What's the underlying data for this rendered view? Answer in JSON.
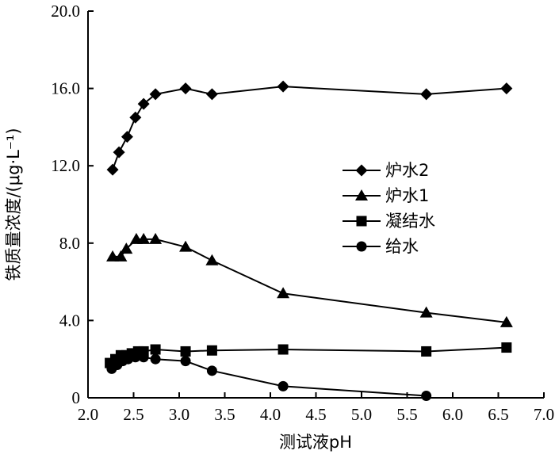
{
  "chart_data": {
    "type": "line",
    "title": "",
    "xlabel": "测试液pH",
    "ylabel": "铁质量浓度/(μg·L⁻¹)",
    "xlim": [
      2.0,
      7.0
    ],
    "ylim": [
      0,
      20.0
    ],
    "x_ticks": [
      "2.0",
      "2.5",
      "3.0",
      "3.5",
      "4.0",
      "4.5",
      "5.0",
      "5.5",
      "6.0",
      "6.5",
      "7.0"
    ],
    "y_ticks": [
      "0",
      "4.0",
      "8.0",
      "12.0",
      "16.0",
      "20.0"
    ],
    "legend_position": "right-center",
    "grid": false,
    "series": [
      {
        "name": "炉水2",
        "marker": "diamond",
        "x": [
          2.27,
          2.34,
          2.43,
          2.52,
          2.61,
          2.74,
          3.07,
          3.36,
          4.14,
          5.71,
          6.59
        ],
        "y": [
          11.8,
          12.7,
          13.5,
          14.5,
          15.2,
          15.7,
          16.0,
          15.7,
          16.1,
          15.7,
          16.0
        ]
      },
      {
        "name": "炉水1",
        "marker": "triangle",
        "x": [
          2.27,
          2.36,
          2.42,
          2.53,
          2.61,
          2.74,
          3.07,
          3.36,
          4.14,
          5.71,
          6.59
        ],
        "y": [
          7.3,
          7.3,
          7.7,
          8.2,
          8.2,
          8.2,
          7.8,
          7.1,
          5.4,
          4.4,
          3.9
        ]
      },
      {
        "name": "凝结水",
        "marker": "square",
        "x": [
          2.24,
          2.3,
          2.36,
          2.42,
          2.48,
          2.55,
          2.61,
          2.74,
          3.07,
          3.36,
          4.14,
          5.71,
          6.59
        ],
        "y": [
          1.8,
          2.0,
          2.2,
          2.2,
          2.3,
          2.4,
          2.4,
          2.5,
          2.4,
          2.45,
          2.5,
          2.4,
          2.6
        ]
      },
      {
        "name": "给水",
        "marker": "circle",
        "x": [
          2.26,
          2.32,
          2.38,
          2.44,
          2.52,
          2.61,
          2.74,
          3.07,
          3.36,
          4.14,
          5.71
        ],
        "y": [
          1.5,
          1.7,
          1.9,
          2.0,
          2.1,
          2.1,
          2.0,
          1.9,
          1.4,
          0.6,
          0.1
        ]
      }
    ]
  }
}
